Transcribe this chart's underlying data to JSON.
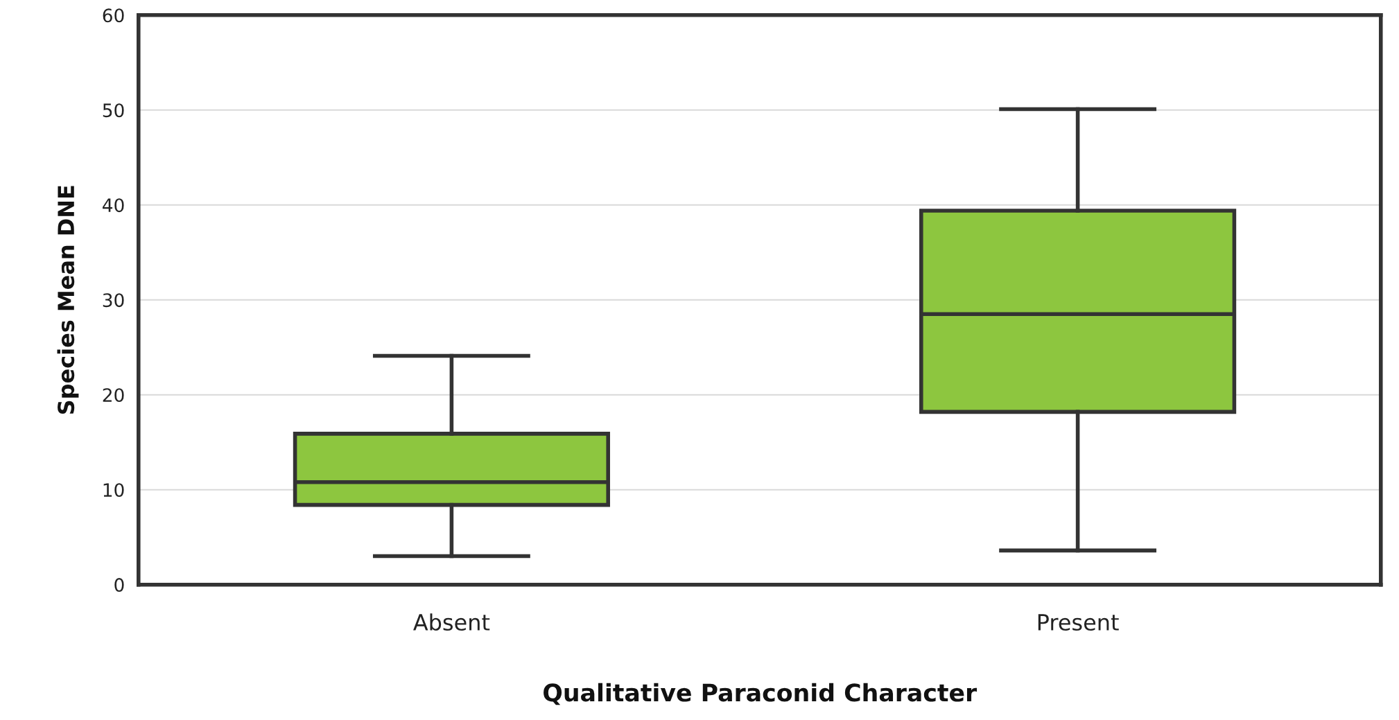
{
  "chart_data": {
    "type": "box",
    "xlabel": "Qualitative Paraconid Character",
    "ylabel": "Species Mean DNE",
    "categories": [
      "Absent",
      "Present"
    ],
    "boxes": [
      {
        "low": 3.0,
        "q1": 8.4,
        "median": 10.8,
        "q3": 15.9,
        "high": 24.1
      },
      {
        "low": 3.6,
        "q1": 18.2,
        "median": 28.5,
        "q3": 39.4,
        "high": 50.1
      }
    ],
    "color": "#8dc63f",
    "ylim": [
      0,
      60
    ],
    "yticks": [
      0,
      10,
      20,
      30,
      40,
      50,
      60
    ],
    "grid": "y"
  }
}
